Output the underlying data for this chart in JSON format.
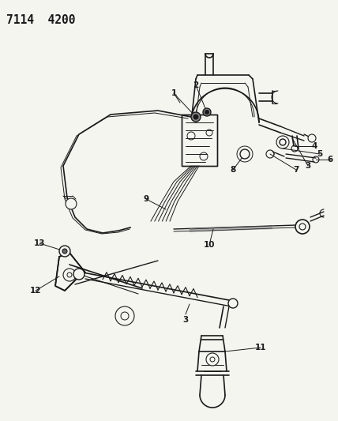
{
  "title": "7114  4200",
  "bg": "#f5f5f0",
  "lc": "#1a1a1a",
  "figsize": [
    4.28,
    5.33
  ],
  "dpi": 100,
  "label_fontsize": 7.5,
  "title_fontsize": 10.5
}
